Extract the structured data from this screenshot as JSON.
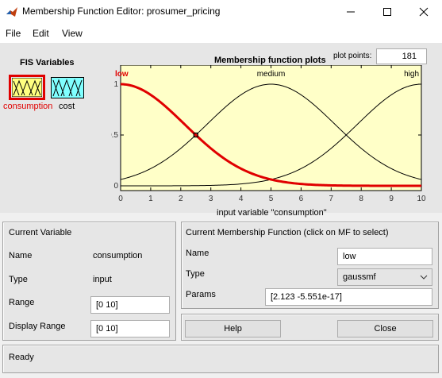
{
  "window": {
    "title": "Membership Function Editor: prosumer_pricing"
  },
  "menu": [
    "File",
    "Edit",
    "View"
  ],
  "fis_variables": {
    "label": "FIS Variables",
    "items": [
      {
        "name": "consumption",
        "selected": true,
        "color": "#ffff80"
      },
      {
        "name": "cost",
        "selected": false,
        "color": "#80ffff"
      }
    ]
  },
  "plot": {
    "title": "Membership function plots",
    "plot_points_label": "plot points:",
    "plot_points_value": "181",
    "xlabel": "input variable \"consumption\"",
    "mf_labels": [
      "low",
      "medium",
      "high"
    ]
  },
  "chart_data": {
    "type": "line",
    "xlim": [
      0,
      10
    ],
    "ylim": [
      0,
      1
    ],
    "x_ticks": [
      "0",
      "1",
      "2",
      "3",
      "4",
      "5",
      "6",
      "7",
      "8",
      "9",
      "10"
    ],
    "y_ticks": [
      "0",
      "0.5",
      "1"
    ],
    "series": [
      {
        "name": "low",
        "mf_type": "gaussmf",
        "sigma": 2.123,
        "center": 0,
        "color": "#e00000",
        "selected": true
      },
      {
        "name": "medium",
        "mf_type": "gaussmf",
        "sigma": 2.123,
        "center": 5,
        "color": "#000000",
        "selected": false
      },
      {
        "name": "high",
        "mf_type": "gaussmf",
        "sigma": 2.123,
        "center": 10,
        "color": "#000000",
        "selected": false
      }
    ],
    "background": "#ffffc8"
  },
  "current_variable": {
    "header": "Current Variable",
    "name_label": "Name",
    "name_value": "consumption",
    "type_label": "Type",
    "type_value": "input",
    "range_label": "Range",
    "range_value": "[0 10]",
    "display_range_label": "Display Range",
    "display_range_value": "[0 10]"
  },
  "current_mf": {
    "header": "Current Membership Function (click on MF to select)",
    "name_label": "Name",
    "name_value": "low",
    "type_label": "Type",
    "type_value": "gaussmf",
    "params_label": "Params",
    "params_value": "[2.123 -5.551e-17]"
  },
  "buttons": {
    "help": "Help",
    "close": "Close"
  },
  "status": "Ready"
}
